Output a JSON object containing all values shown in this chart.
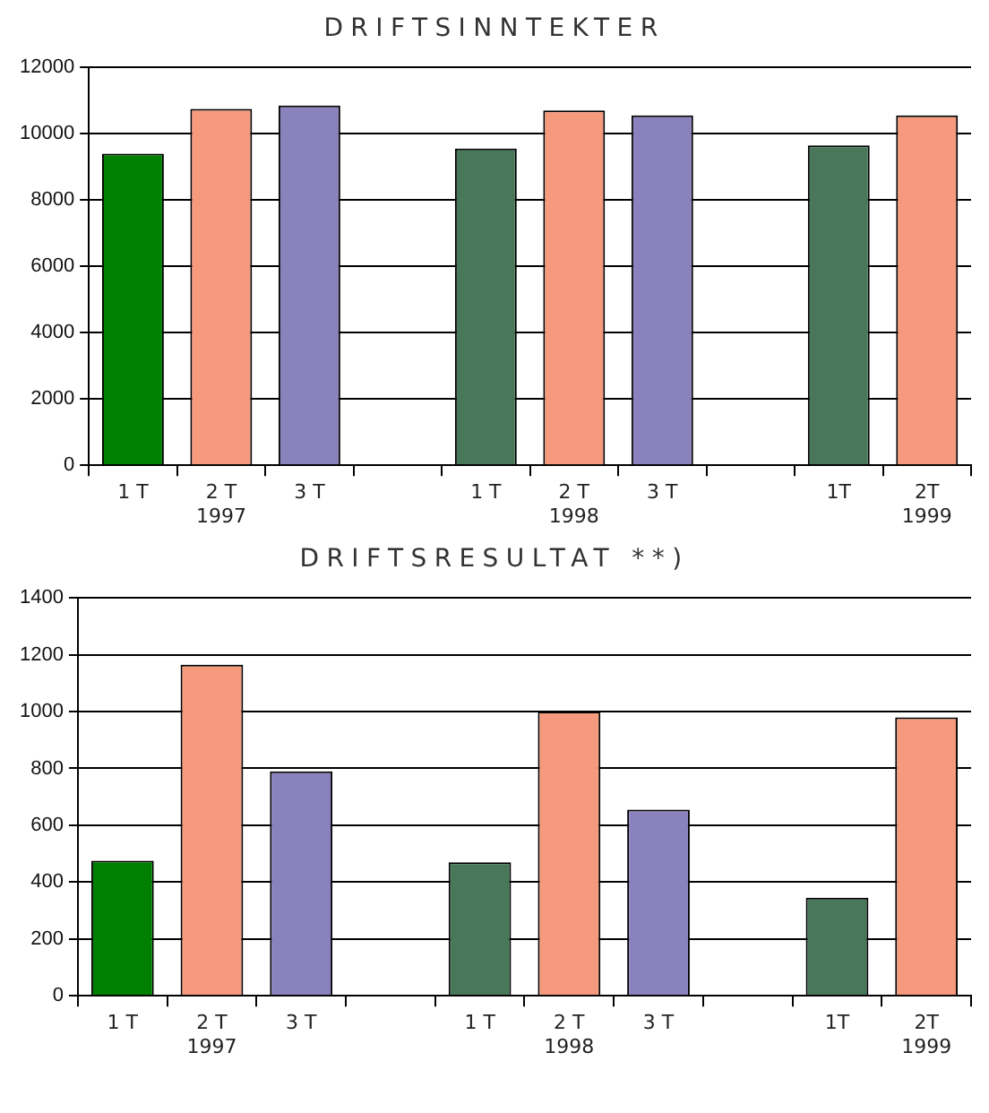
{
  "chart_data": [
    {
      "type": "bar",
      "title": "DRIFTSINNTEKTER",
      "categories": [
        "1 T",
        "2 T\n1997",
        "3 T",
        null,
        "1 T",
        "2 T\n1998",
        "3 T",
        null,
        "1T",
        "2T\n1999"
      ],
      "values": [
        9400,
        10750,
        10850,
        null,
        9550,
        10700,
        10550,
        null,
        9650,
        10550
      ],
      "colors": [
        "#008000",
        "#f59a7c",
        "#8a82bd",
        "#ffffff",
        "#48775a",
        "#f59a7c",
        "#8a82bd",
        "#ffffff",
        "#48775a",
        "#f59a7c"
      ],
      "ylim": [
        0,
        12000
      ],
      "yticks": [
        0,
        2000,
        4000,
        6000,
        8000,
        10000,
        12000
      ],
      "grid": "y"
    },
    {
      "type": "bar",
      "title": "DRIFTSRESULTAT **)",
      "categories": [
        "1 T",
        "2 T\n1997",
        "3 T",
        null,
        "1 T",
        "2 T\n1998",
        "3 T",
        null,
        "1T",
        "2T\n1999"
      ],
      "values": [
        475,
        1165,
        790,
        null,
        470,
        1000,
        655,
        null,
        345,
        980
      ],
      "colors": [
        "#008000",
        "#f59a7c",
        "#8a82bd",
        "#ffffff",
        "#48775a",
        "#f59a7c",
        "#8a82bd",
        "#ffffff",
        "#48775a",
        "#f59a7c"
      ],
      "ylim": [
        0,
        1400
      ],
      "yticks": [
        0,
        200,
        400,
        600,
        800,
        1000,
        1200,
        1400
      ],
      "grid": "y"
    }
  ]
}
